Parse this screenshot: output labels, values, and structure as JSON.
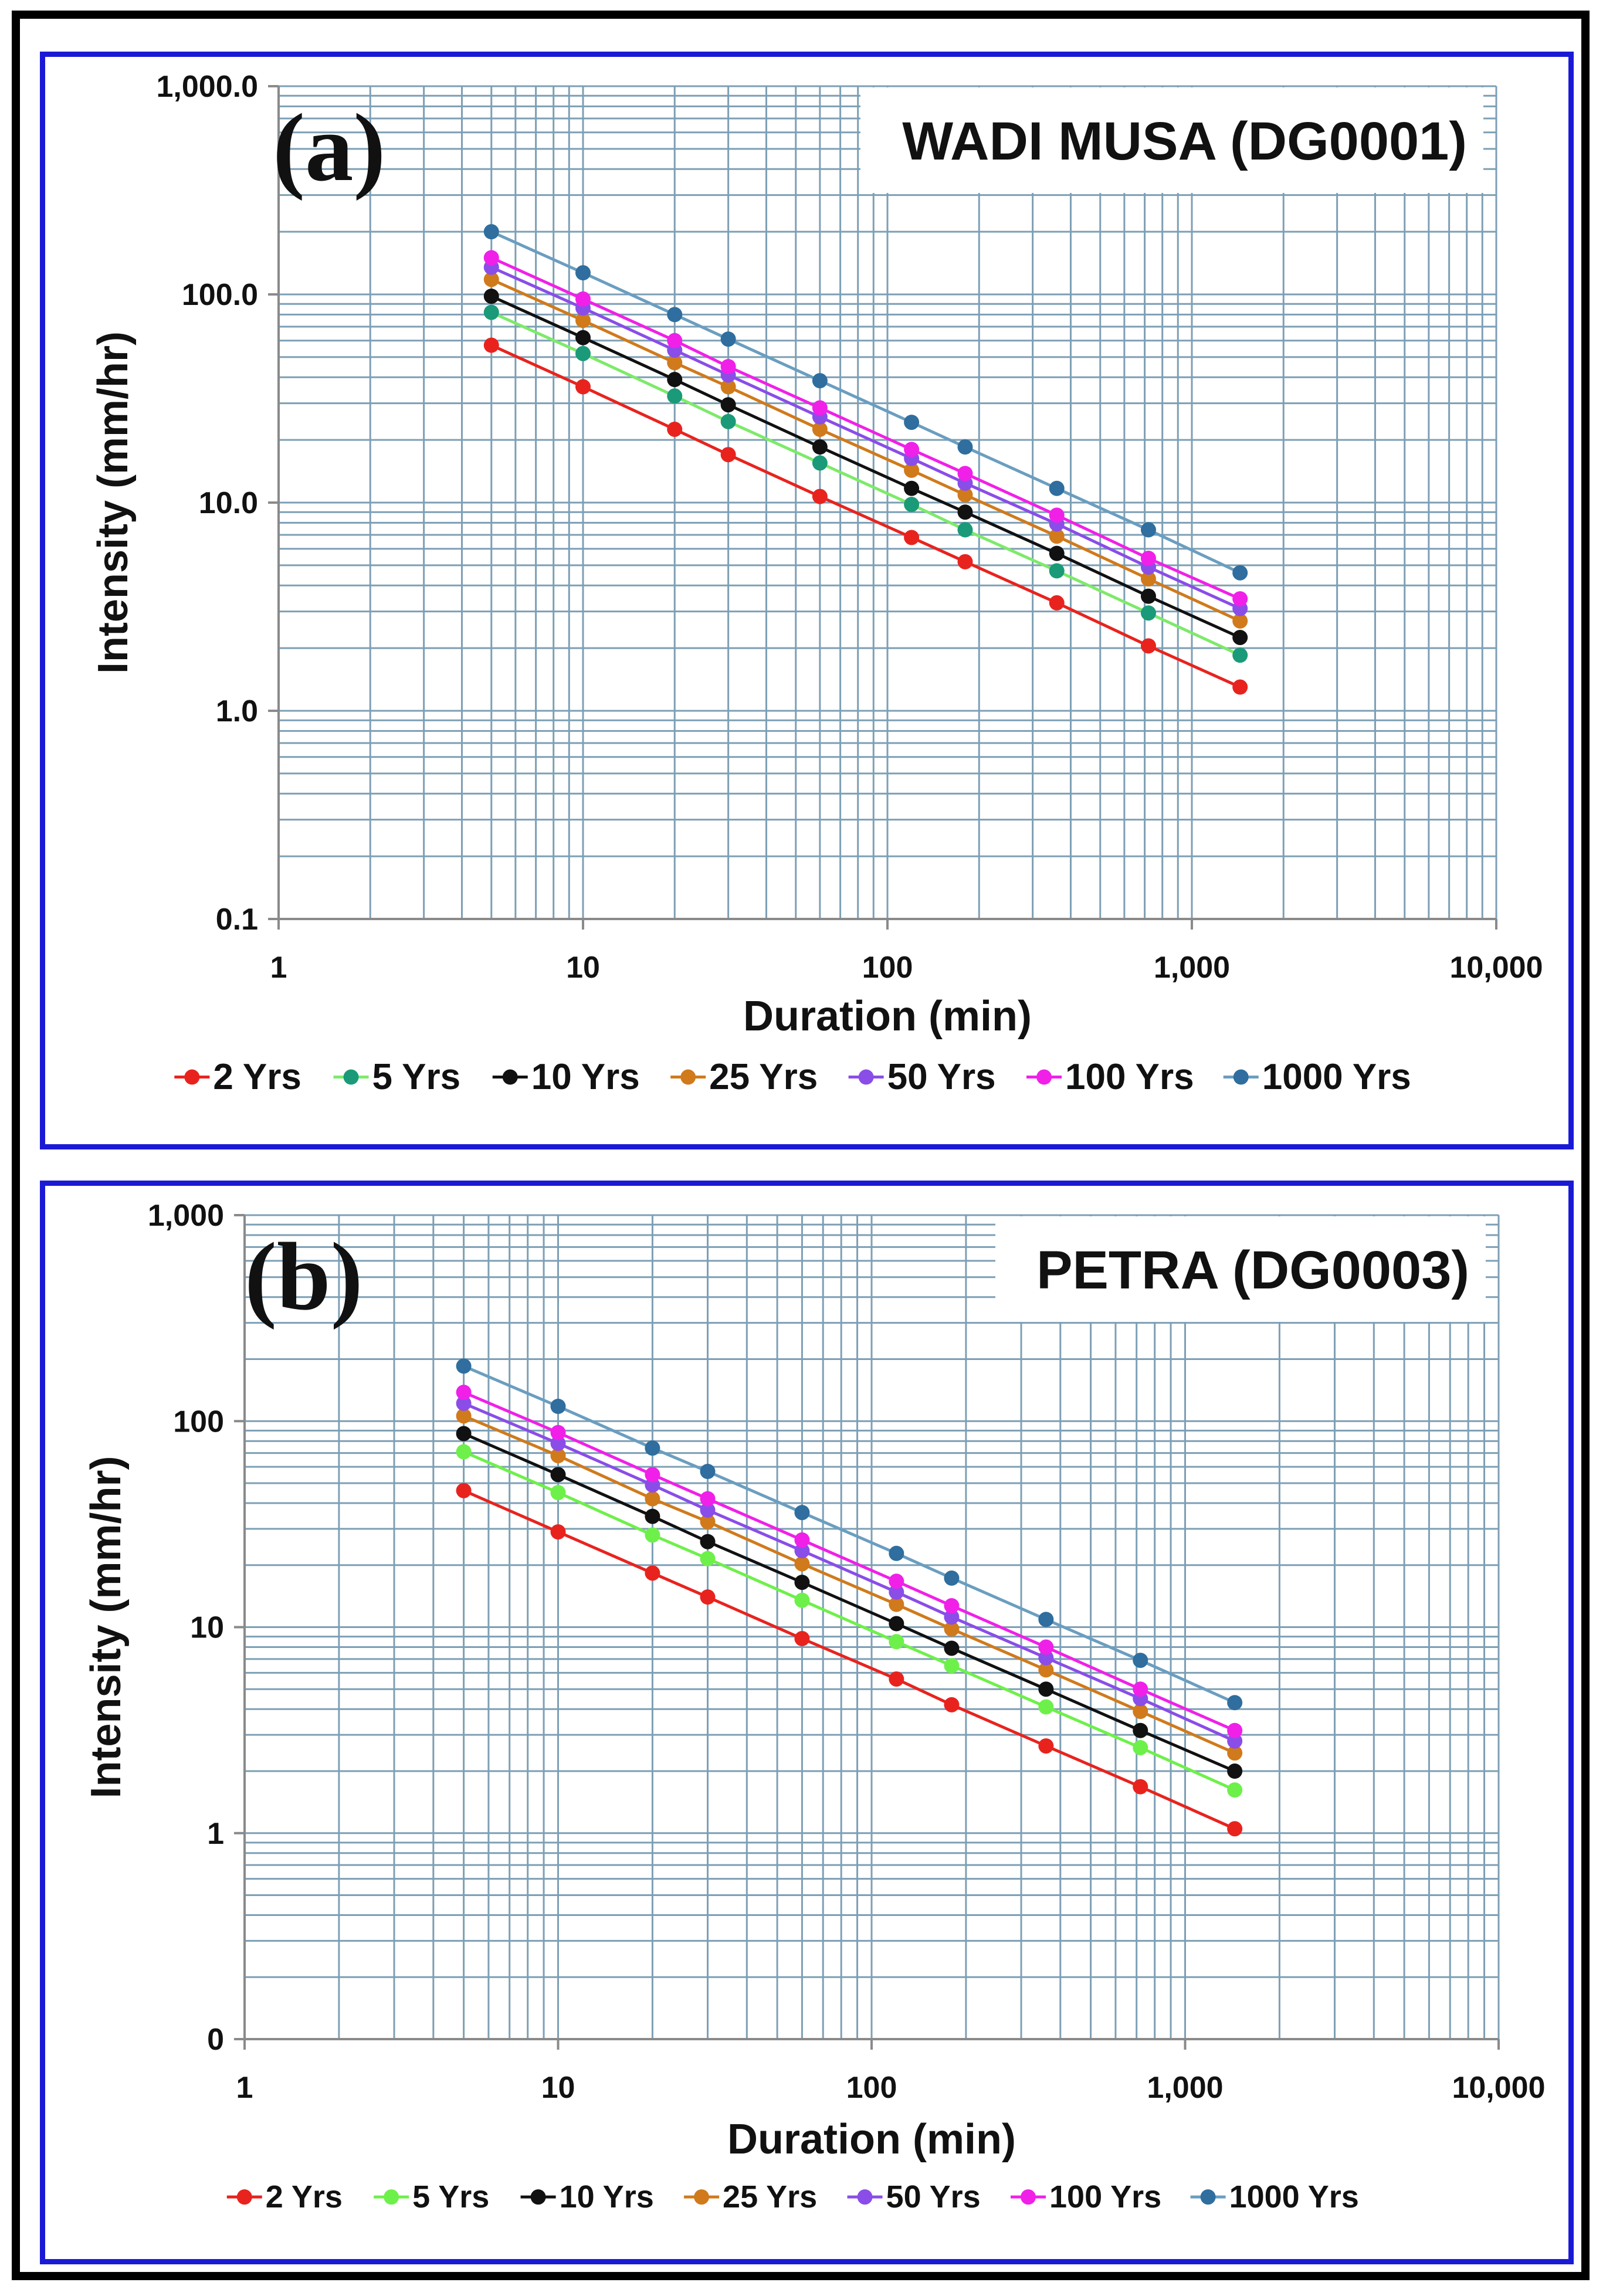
{
  "chart_data": [
    {
      "type": "line",
      "panel_label": "(a)",
      "title": "WADI MUSA (DG0001)",
      "xlabel": "Duration (min)",
      "ylabel": "Intensity (mm/hr)",
      "xscale": "log",
      "yscale": "log",
      "xlim": [
        1,
        10000
      ],
      "ylim": [
        0.1,
        1000
      ],
      "xticks": [
        1,
        10,
        100,
        1000,
        10000
      ],
      "xtick_labels": [
        "1",
        "10",
        "100",
        "1,000",
        "10,000"
      ],
      "yticks": [
        0.1,
        1,
        10,
        100,
        1000
      ],
      "ytick_labels": [
        "0.1",
        "1.0",
        "10.0",
        "100.0",
        "1,000.0"
      ],
      "grid": true,
      "legend_position": "bottom",
      "x": [
        5,
        10,
        20,
        30,
        60,
        120,
        180,
        360,
        720,
        1440
      ],
      "series": [
        {
          "name": "2 Yrs",
          "color": "#e8231e",
          "values": [
            57,
            36,
            22.5,
            17,
            10.7,
            6.8,
            5.2,
            3.3,
            2.05,
            1.3
          ]
        },
        {
          "name": "5 Yrs",
          "color": "#1a9a78",
          "line_color": "#7dea6a",
          "values": [
            82,
            52,
            32.5,
            24.5,
            15.5,
            9.8,
            7.4,
            4.7,
            2.95,
            1.85
          ]
        },
        {
          "name": "10 Yrs",
          "color": "#111111",
          "values": [
            98,
            62,
            39,
            29.5,
            18.5,
            11.7,
            9.0,
            5.7,
            3.55,
            2.25
          ]
        },
        {
          "name": "25 Yrs",
          "color": "#d07a1c",
          "values": [
            118,
            75,
            47,
            36,
            22.5,
            14.3,
            10.9,
            6.9,
            4.3,
            2.7
          ]
        },
        {
          "name": "50 Yrs",
          "color": "#8a4de8",
          "values": [
            135,
            86,
            54,
            41,
            25.8,
            16.3,
            12.4,
            7.9,
            4.9,
            3.1
          ]
        },
        {
          "name": "100 Yrs",
          "color": "#f020e8",
          "values": [
            150,
            95,
            60,
            45,
            28.5,
            18,
            13.8,
            8.7,
            5.4,
            3.45
          ]
        },
        {
          "name": "1000 Yrs",
          "color": "#2f6e9e",
          "line_color": "#6a9ec0",
          "values": [
            200,
            127,
            80,
            61,
            38.5,
            24.3,
            18.5,
            11.7,
            7.4,
            4.6
          ]
        }
      ]
    },
    {
      "type": "line",
      "panel_label": "(b)",
      "title": "PETRA (DG0003)",
      "xlabel": "Duration (min)",
      "ylabel": "Intensity (mm/hr)",
      "xscale": "log",
      "yscale": "log",
      "xlim": [
        1,
        10000
      ],
      "ylim": [
        0.1,
        1000
      ],
      "xticks": [
        1,
        10,
        100,
        1000,
        10000
      ],
      "xtick_labels": [
        "1",
        "10",
        "100",
        "1,000",
        "10,000"
      ],
      "yticks": [
        0.1,
        1,
        10,
        100,
        1000
      ],
      "ytick_labels": [
        "0",
        "1",
        "10",
        "100",
        "1,000"
      ],
      "grid": true,
      "legend_position": "bottom",
      "x": [
        5,
        10,
        20,
        30,
        60,
        120,
        180,
        360,
        720,
        1440
      ],
      "series": [
        {
          "name": "2 Yrs",
          "color": "#e8231e",
          "values": [
            46,
            29,
            18.3,
            14,
            8.8,
            5.6,
            4.2,
            2.65,
            1.68,
            1.05
          ]
        },
        {
          "name": "5 Yrs",
          "color": "#6ef04a",
          "values": [
            71,
            45,
            28,
            21.5,
            13.5,
            8.5,
            6.5,
            4.1,
            2.6,
            1.62
          ]
        },
        {
          "name": "10 Yrs",
          "color": "#111111",
          "values": [
            87,
            55,
            34.5,
            26,
            16.5,
            10.4,
            7.9,
            5.0,
            3.15,
            2.0
          ]
        },
        {
          "name": "25 Yrs",
          "color": "#d07a1c",
          "values": [
            106,
            68,
            42,
            32.5,
            20.3,
            12.9,
            9.8,
            6.2,
            3.9,
            2.45
          ]
        },
        {
          "name": "50 Yrs",
          "color": "#8a4de8",
          "values": [
            122,
            78,
            49,
            37,
            23.5,
            14.8,
            11.2,
            7.1,
            4.5,
            2.8
          ]
        },
        {
          "name": "100 Yrs",
          "color": "#f020e8",
          "values": [
            138,
            88,
            55,
            42,
            26.5,
            16.7,
            12.7,
            8.0,
            5.0,
            3.15
          ]
        },
        {
          "name": "1000 Yrs",
          "color": "#2f6e9e",
          "line_color": "#6a9ec0",
          "values": [
            185,
            118,
            74,
            57,
            36,
            22.8,
            17.3,
            10.9,
            6.9,
            4.3
          ]
        }
      ]
    }
  ]
}
